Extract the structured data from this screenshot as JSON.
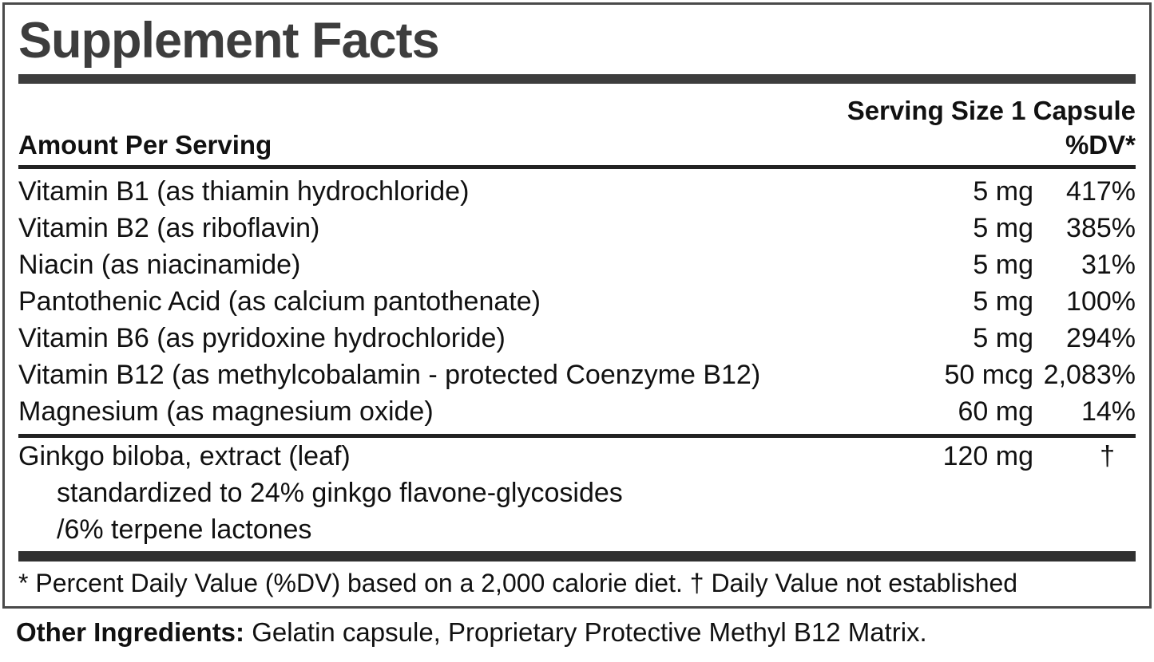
{
  "label": {
    "title": "Supplement Facts",
    "serving_size": "Serving Size 1 Capsule",
    "columns": {
      "amount_header": "Amount Per Serving",
      "dv_header": "%DV*"
    },
    "nutrients": [
      {
        "name": "Vitamin B1 (as thiamin hydrochloride)",
        "amount": "5 mg",
        "dv": "417%"
      },
      {
        "name": "Vitamin B2 (as riboflavin)",
        "amount": "5 mg",
        "dv": "385%"
      },
      {
        "name": "Niacin (as niacinamide)",
        "amount": "5 mg",
        "dv": "31%"
      },
      {
        "name": "Pantothenic Acid (as calcium pantothenate)",
        "amount": "5 mg",
        "dv": "100%"
      },
      {
        "name": "Vitamin B6 (as pyridoxine hydrochloride)",
        "amount": "5 mg",
        "dv": "294%"
      },
      {
        "name": "Vitamin B12 (as methylcobalamin - protected Coenzyme B12)",
        "amount": "50 mcg",
        "dv": "2,083%"
      },
      {
        "name": "Magnesium (as magnesium oxide)",
        "amount": "60 mg",
        "dv": "14%"
      }
    ],
    "botanical": {
      "name": "Ginkgo biloba, extract (leaf)",
      "amount": "120 mg",
      "dv": "†",
      "details": [
        "standardized to 24% ginkgo flavone-glycosides",
        "/6% terpene lactones"
      ]
    },
    "footnote": "* Percent Daily Value (%DV) based on a 2,000 calorie diet. † Daily Value not established",
    "other_ingredients": {
      "label": "Other Ingredients:",
      "text": " Gelatin capsule, Proprietary Protective Methyl B12 Matrix."
    },
    "colors": {
      "accent": "#3d3d3d",
      "text": "#111111",
      "background": "#ffffff",
      "border": "#4a4a4a"
    }
  }
}
